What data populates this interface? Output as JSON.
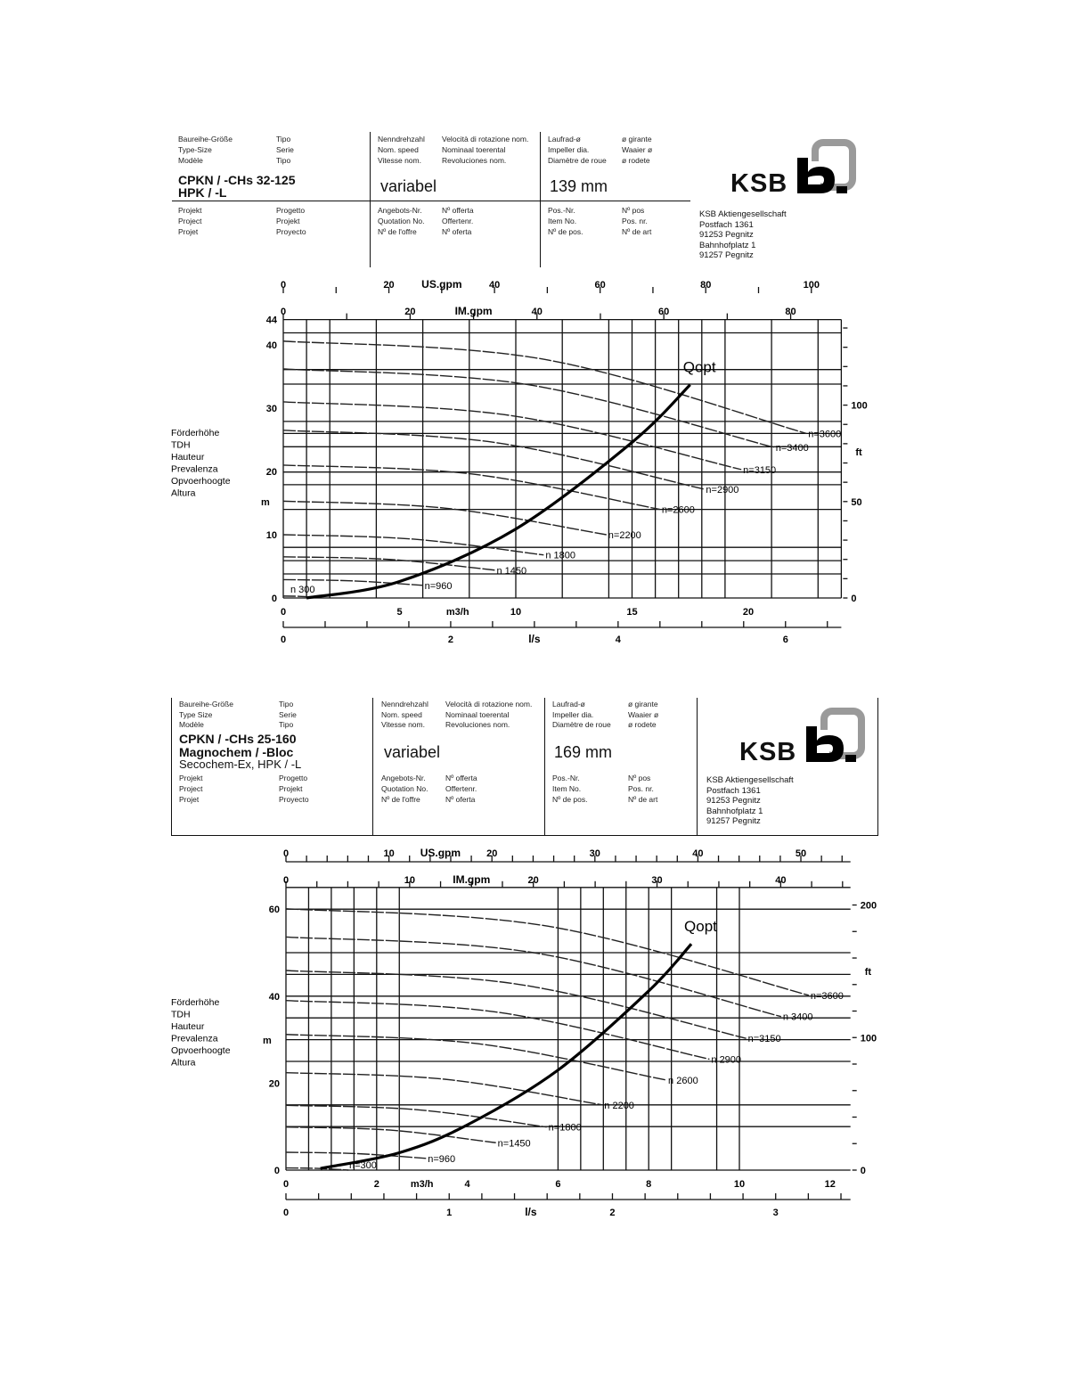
{
  "headers": [
    {
      "col1_labels": [
        "Baureihe-Größe",
        "Type-Size",
        "Modèle"
      ],
      "col1b_labels": [
        "Tipo",
        "Serie",
        "Tipo"
      ],
      "model_lines": [
        "CPKN / -CHs  32-125",
        "HPK / -L"
      ],
      "col1_lower": [
        "Projekt",
        "Project",
        "Projet"
      ],
      "col1b_lower": [
        "Progetto",
        "Projekt",
        "Proyecto"
      ],
      "col2_labels": [
        "Nenndrehzahl",
        "Nom. speed",
        "Vitesse nom."
      ],
      "col2b_labels": [
        "Velocità di rotazione nom.",
        "Nominaal toerental",
        "Revoluciones nom."
      ],
      "speed": "variabel",
      "col2_lower": [
        "Angebots-Nr.",
        "Quotation No.",
        "Nº de l'offre"
      ],
      "col2b_lower": [
        "Nº offerta",
        "Offertenr.",
        "Nº oferta"
      ],
      "col3_labels": [
        "Laufrad-ø",
        "Impeller dia.",
        "Diamètre de roue"
      ],
      "col3b_labels": [
        "ø girante",
        "Waaier ø",
        "ø rodete"
      ],
      "impeller": "139 mm",
      "col3_lower": [
        "Pos.-Nr.",
        "Item No.",
        "Nº de pos."
      ],
      "col3b_lower": [
        "Nº pos",
        "Pos. nr.",
        "Nº de art"
      ],
      "logo_text": "KSB",
      "address": [
        "KSB Aktiengesellschaft",
        "Postfach 1361",
        "91253 Pegnitz",
        "Bahnhofplatz 1",
        "91257 Pegnitz"
      ]
    },
    {
      "col1_labels": [
        "Baureihe-Größe",
        "Type  Size",
        "Modèle"
      ],
      "col1b_labels": [
        "Tipo",
        "Serie",
        "Tipo"
      ],
      "model_lines": [
        "CPKN / -CHs 25-160",
        "Magnochem / -Bloc",
        "Secochem-Ex, HPK / -L"
      ],
      "col1_lower": [
        "Projekt",
        "Project",
        "Projet"
      ],
      "col1b_lower": [
        "Progetto",
        "Projekt",
        "Proyecto"
      ],
      "col2_labels": [
        "Nenndrehzahl",
        "Nom. speed",
        "Vitesse nom."
      ],
      "col2b_labels": [
        "Velocità di rotazione nom.",
        "Nominaal toerental",
        "Revoluciones nom."
      ],
      "speed": "variabel",
      "col2_lower": [
        "Angebots-Nr.",
        "Quotation No.",
        "Nº de l'offre"
      ],
      "col2b_lower": [
        "Nº offerta",
        "Offertenr.",
        "Nº oferta"
      ],
      "col3_labels": [
        "Laufrad-ø",
        "Impeller dia.",
        "Diamètre de roue"
      ],
      "col3b_labels": [
        "ø girante",
        "Waaier ø",
        "ø rodete"
      ],
      "impeller": "169 mm",
      "col3_lower": [
        "Pos.-Nr.",
        "Item No.",
        "Nº de pos."
      ],
      "col3b_lower": [
        "Nº pos",
        "Pos. nr.",
        "Nº de art"
      ],
      "logo_text": "KSB",
      "address": [
        "KSB Aktiengesellschaft",
        "Postfach 1361",
        "91253 Pegnitz",
        "Bahnhofplatz 1",
        "91257 Pegnitz"
      ]
    }
  ],
  "chart_data": [
    {
      "type": "line",
      "ylabel_lines": [
        "Förderhöhe",
        "TDH",
        "Hauteur",
        "Prevalenza",
        "Opvoerhoogte",
        "Altura"
      ],
      "yunit": "m",
      "xunit": "m3/h",
      "xlim": [
        0,
        24
      ],
      "ylim": [
        0,
        44
      ],
      "x_ticks": [
        "0",
        "5",
        "10",
        "15",
        "20"
      ],
      "y_ticks": [
        "0",
        "10",
        "20",
        "30",
        "40",
        "44"
      ],
      "grid": true,
      "grid_q": [
        0,
        1,
        2,
        4,
        6,
        8,
        10,
        12,
        14,
        15,
        16,
        17,
        18,
        19,
        21,
        23,
        24
      ],
      "grid_h": [
        0,
        3.8,
        5.9,
        8,
        14,
        17.9,
        19.9,
        23.9,
        26,
        27.9,
        33.8,
        36.1,
        41.9,
        44
      ],
      "us_gpm": {
        "label": "US.gpm",
        "ticks": [
          "0",
          "20",
          "40",
          "60",
          "80",
          "100"
        ],
        "minor_step": 10
      },
      "im_gpm": {
        "label": "IM.gpm",
        "ticks": [
          "0",
          "20",
          "40",
          "60",
          "80"
        ],
        "minor_step": 10
      },
      "lps": {
        "label": "l/s",
        "ticks": [
          "0",
          "2",
          "4",
          "6"
        ],
        "minor_step": 0.5
      },
      "ft_axis": {
        "label": "ft",
        "ticks": [
          "0",
          "50",
          "100"
        ],
        "minor_step": 10
      },
      "curves": [
        {
          "label": "n=3600",
          "points": [
            [
              0,
              40.6
            ],
            [
              11.25,
              37.7
            ],
            [
              22.5,
              26
            ]
          ]
        },
        {
          "label": "n=3400",
          "points": [
            [
              0,
              36.2
            ],
            [
              10.55,
              33.7
            ],
            [
              21.1,
              23.8
            ]
          ]
        },
        {
          "label": "n=3150",
          "points": [
            [
              0,
              31
            ],
            [
              9.85,
              28.8
            ],
            [
              19.7,
              20.3
            ]
          ]
        },
        {
          "label": "n=2900",
          "points": [
            [
              0,
              26.5
            ],
            [
              9.05,
              24.6
            ],
            [
              18.1,
              17.2
            ]
          ]
        },
        {
          "label": "n=2600",
          "points": [
            [
              0,
              21
            ],
            [
              8.1,
              19.6
            ],
            [
              16.2,
              14
            ]
          ]
        },
        {
          "label": "n=2200",
          "points": [
            [
              0,
              15.3
            ],
            [
              6.95,
              14.2
            ],
            [
              13.9,
              10
            ]
          ]
        },
        {
          "label": "n 1800",
          "points": [
            [
              0,
              10
            ],
            [
              5.6,
              9.3
            ],
            [
              11.2,
              6.8
            ]
          ]
        },
        {
          "label": "n 1450",
          "points": [
            [
              0,
              6.5
            ],
            [
              4.55,
              6.1
            ],
            [
              9.1,
              4.4
            ]
          ]
        },
        {
          "label": "n=960",
          "points": [
            [
              0,
              2.9
            ],
            [
              3,
              2.7
            ],
            [
              6,
              2
            ]
          ]
        },
        {
          "label": "n 300",
          "points": [
            [
              0,
              0.3
            ],
            [
              0.5,
              0.28
            ],
            [
              1,
              0.2
            ]
          ]
        }
      ],
      "qopt": {
        "label": "Qopt",
        "points": [
          [
            1,
            0
          ],
          [
            5,
            2.6
          ],
          [
            10,
            10.9
          ],
          [
            15,
            24.6
          ],
          [
            17.5,
            33.7
          ]
        ]
      }
    },
    {
      "type": "line",
      "ylabel_lines": [
        "Förderhöhe",
        "TDH",
        "Hauteur",
        "Prevalenza",
        "Opvoerhoogte",
        "Altura"
      ],
      "yunit": "m",
      "xunit": "m3/h",
      "xlim": [
        0,
        12.45
      ],
      "ylim": [
        0,
        65
      ],
      "x_ticks": [
        "0",
        "2",
        "4",
        "6",
        "8",
        "10",
        "12"
      ],
      "y_ticks": [
        "0",
        "20",
        "40",
        "60"
      ],
      "grid": true,
      "grid_q": [
        0,
        0.5,
        1,
        1.5,
        2,
        2.5,
        6,
        6.5,
        7,
        7.5,
        8,
        8.5,
        9.5,
        10
      ],
      "grid_h": [
        0,
        10,
        15,
        25,
        30,
        35,
        40,
        45,
        50,
        60,
        65
      ],
      "us_gpm": {
        "label": "US.gpm",
        "ticks": [
          "0",
          "10",
          "20",
          "30",
          "40",
          "50"
        ],
        "minor_step": 2
      },
      "im_gpm": {
        "label": "IM.gpm",
        "ticks": [
          "0",
          "10",
          "20",
          "30",
          "40"
        ],
        "minor_step": 2.5
      },
      "lps": {
        "label": "l/s",
        "ticks": [
          "0",
          "1",
          "2",
          "3"
        ],
        "minor_step": 0.2
      },
      "ft_axis": {
        "label": "ft",
        "ticks": [
          "0",
          "100",
          "200"
        ],
        "minor_step": 20
      },
      "curves": [
        {
          "label": "n=3600",
          "points": [
            [
              0,
              60.1
            ],
            [
              5.77,
              56.1
            ],
            [
              11.53,
              40.2
            ]
          ]
        },
        {
          "label": "n 3400",
          "points": [
            [
              0,
              53.6
            ],
            [
              5.46,
              50
            ],
            [
              10.92,
              35.3
            ]
          ]
        },
        {
          "label": "n=3150",
          "points": [
            [
              0,
              45.9
            ],
            [
              5.08,
              42.8
            ],
            [
              10.15,
              30.3
            ]
          ]
        },
        {
          "label": "n 2900",
          "points": [
            [
              0,
              39
            ],
            [
              4.67,
              36.3
            ],
            [
              9.34,
              25.5
            ]
          ]
        },
        {
          "label": "n 2600",
          "points": [
            [
              0,
              31.2
            ],
            [
              4.2,
              29.1
            ],
            [
              8.39,
              20.7
            ]
          ]
        },
        {
          "label": "n 2200",
          "points": [
            [
              0,
              22.4
            ],
            [
              3.5,
              20.9
            ],
            [
              6.98,
              15
            ]
          ]
        },
        {
          "label": "n=1800",
          "points": [
            [
              0,
              14.9
            ],
            [
              2.88,
              13.9
            ],
            [
              5.75,
              9.9
            ]
          ]
        },
        {
          "label": "n=1450",
          "points": [
            [
              0,
              9.9
            ],
            [
              2.3,
              9.2
            ],
            [
              4.63,
              6.3
            ]
          ]
        },
        {
          "label": "n=960",
          "points": [
            [
              0,
              4.1
            ],
            [
              1.55,
              3.8
            ],
            [
              3.09,
              2.7
            ]
          ]
        },
        {
          "label": "n=300",
          "points": [
            [
              0,
              0.5
            ],
            [
              0.7,
              0.4
            ],
            [
              1.38,
              0
            ]
          ]
        }
      ],
      "qopt": {
        "label": "Qopt",
        "points": [
          [
            0.76,
            0.4
          ],
          [
            2.5,
            4
          ],
          [
            4,
            10.4
          ],
          [
            6,
            23
          ],
          [
            8,
            41.2
          ],
          [
            8.94,
            52
          ]
        ]
      }
    }
  ]
}
